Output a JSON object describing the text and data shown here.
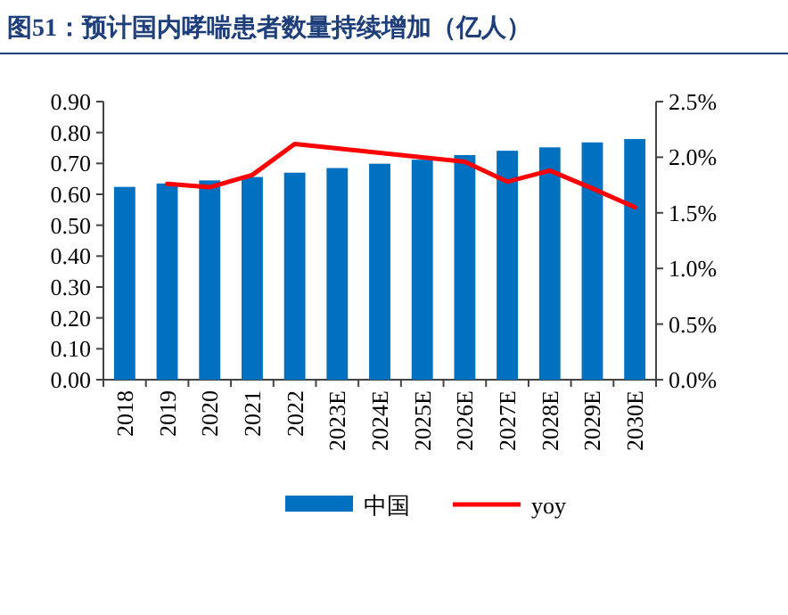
{
  "chart_data": {
    "type": "bar",
    "title": "图51：预计国内哮喘患者数量持续增加（亿人）",
    "categories": [
      "2018",
      "2019",
      "2020",
      "2021",
      "2022",
      "2023E",
      "2024E",
      "2025E",
      "2026E",
      "2027E",
      "2028E",
      "2029E",
      "2030E"
    ],
    "series": [
      {
        "name": "中国",
        "color": "#0070c0",
        "values": [
          0.624,
          0.635,
          0.645,
          0.656,
          0.67,
          0.685,
          0.699,
          0.712,
          0.727,
          0.741,
          0.752,
          0.768,
          0.779
        ]
      },
      {
        "name": "yoy",
        "type": "line",
        "axis": "y2",
        "color": "#ff0000",
        "values": [
          null,
          1.76,
          1.73,
          1.84,
          2.12,
          2.08,
          2.04,
          2.0,
          1.96,
          1.78,
          1.88,
          1.72,
          1.55
        ]
      }
    ],
    "ylim": [
      0,
      0.9
    ],
    "yticks": [
      {
        "value": 0,
        "label": "0.00"
      },
      {
        "value": 0.1,
        "label": "0.10"
      },
      {
        "value": 0.2,
        "label": "0.20"
      },
      {
        "value": 0.3,
        "label": "0.30"
      },
      {
        "value": 0.4,
        "label": "0.40"
      },
      {
        "value": 0.5,
        "label": "0.50"
      },
      {
        "value": 0.6,
        "label": "0.60"
      },
      {
        "value": 0.7,
        "label": "0.70"
      },
      {
        "value": 0.8,
        "label": "0.80"
      },
      {
        "value": 0.9,
        "label": "0.90"
      }
    ],
    "y2lim": [
      0,
      2.5
    ],
    "y2ticks": [
      {
        "value": 0,
        "label": "0.0%"
      },
      {
        "value": 0.5,
        "label": "0.5%"
      },
      {
        "value": 1,
        "label": "1.0%"
      },
      {
        "value": 1.5,
        "label": "1.5%"
      },
      {
        "value": 2,
        "label": "2.0%"
      },
      {
        "value": 2.5,
        "label": "2.5%"
      }
    ],
    "legend": "bottom",
    "grid": false
  }
}
